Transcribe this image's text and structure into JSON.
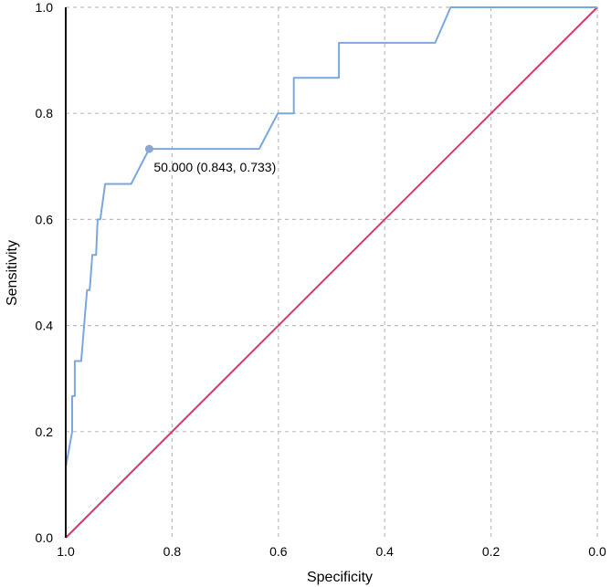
{
  "chart_data": {
    "type": "line",
    "xlabel": "Specificity",
    "ylabel": "Sensitivity",
    "xlim": [
      1.0,
      0.0
    ],
    "ylim": [
      0.0,
      1.0
    ],
    "x_reversed": true,
    "grid": true,
    "x_ticks": [
      "1.0",
      "0.8",
      "0.6",
      "0.4",
      "0.2",
      "0.0"
    ],
    "y_ticks": [
      "0.0",
      "0.2",
      "0.4",
      "0.6",
      "0.8",
      "1.0"
    ],
    "series": [
      {
        "kind": "roc-curve",
        "color": "#7aa7de",
        "points": [
          [
            1.0,
            0.0
          ],
          [
            1.0,
            0.133
          ],
          [
            0.988,
            0.2
          ],
          [
            0.988,
            0.267
          ],
          [
            0.983,
            0.267
          ],
          [
            0.983,
            0.333
          ],
          [
            0.971,
            0.333
          ],
          [
            0.96,
            0.467
          ],
          [
            0.955,
            0.467
          ],
          [
            0.95,
            0.533
          ],
          [
            0.943,
            0.533
          ],
          [
            0.94,
            0.6
          ],
          [
            0.935,
            0.6
          ],
          [
            0.926,
            0.667
          ],
          [
            0.877,
            0.667
          ],
          [
            0.843,
            0.733
          ],
          [
            0.636,
            0.733
          ],
          [
            0.601,
            0.8
          ],
          [
            0.571,
            0.8
          ],
          [
            0.571,
            0.867
          ],
          [
            0.486,
            0.867
          ],
          [
            0.486,
            0.933
          ],
          [
            0.305,
            0.933
          ],
          [
            0.276,
            1.0
          ],
          [
            0.0,
            1.0
          ]
        ]
      },
      {
        "kind": "reference-diagonal",
        "color": "#d23c6b",
        "points": [
          [
            1.0,
            0.0
          ],
          [
            0.0,
            1.0
          ]
        ]
      }
    ],
    "annotation": {
      "x": 0.843,
      "y": 0.733,
      "text": "50.000 (0.843, 0.733)",
      "marker_color": "#8da6cf"
    }
  }
}
